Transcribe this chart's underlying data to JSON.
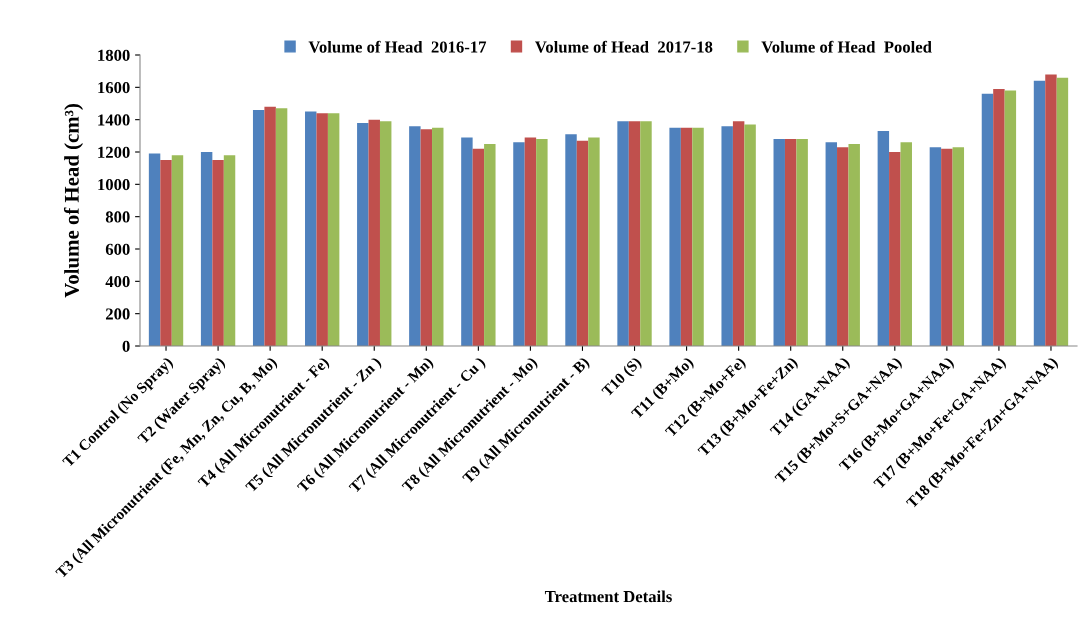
{
  "chart_data": {
    "type": "bar",
    "xlabel": "Treatment Details",
    "ylabel": "Volume of Head (cm³)",
    "categories": [
      "T1 Control (No Spray)",
      "T2 (Water Spray)",
      "T3 (All Micronutrient (Fe, Mn, Zn, Cu, B, Mo)",
      "T4 (All Micronutrient - Fe)",
      "T5 (All Micronutrient - Zn )",
      "T6 (All Micronutrient - Mn)",
      "T7 (All Micronutrient - Cu )",
      "T8 (All Micronutrient - Mo)",
      "T9 (All Micronutrient - B)",
      "T10 (S)",
      "T11 (B+Mo)",
      "T12 (B+Mo+Fe)",
      "T13 (B+Mo+Fe+Zn)",
      "T14 (GA+NAA)",
      "T15 (B+Mo+S+GA+NAA)",
      "T16 (B+Mo+GA+NAA)",
      "T17 (B+Mo+Fe+GA+NAA)",
      "T18 (B+Mo+Fe+Zn+GA+NAA)"
    ],
    "series": [
      {
        "name": "Volume of Head  2016-17",
        "color": "#4f81bd",
        "values": [
          1190,
          1200,
          1460,
          1450,
          1380,
          1360,
          1290,
          1260,
          1310,
          1390,
          1350,
          1360,
          1280,
          1260,
          1330,
          1230,
          1560,
          1640
        ]
      },
      {
        "name": "Volume of Head  2017-18",
        "color": "#c0504d",
        "values": [
          1150,
          1150,
          1480,
          1440,
          1400,
          1340,
          1220,
          1290,
          1270,
          1390,
          1350,
          1390,
          1280,
          1230,
          1200,
          1220,
          1590,
          1680
        ]
      },
      {
        "name": "Volume of Head  Pooled",
        "color": "#9bbb59",
        "values": [
          1180,
          1180,
          1470,
          1440,
          1390,
          1350,
          1250,
          1280,
          1290,
          1390,
          1350,
          1370,
          1280,
          1250,
          1260,
          1230,
          1580,
          1660
        ]
      }
    ],
    "ylim": [
      0,
      1800
    ],
    "yticks": [
      0,
      200,
      400,
      600,
      800,
      1000,
      1200,
      1400,
      1600,
      1800
    ],
    "grid": false,
    "legend": "top"
  }
}
